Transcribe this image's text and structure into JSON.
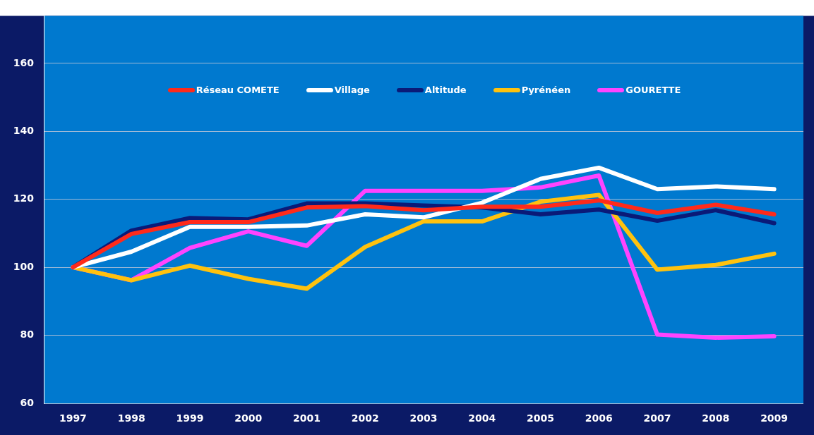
{
  "chart_data": {
    "type": "line",
    "categories": [
      "1997",
      "1998",
      "1999",
      "2000",
      "2001",
      "2002",
      "2003",
      "2004",
      "2005",
      "2006",
      "2007",
      "2008",
      "2009"
    ],
    "series": [
      {
        "name": "Réseau COMETE",
        "color": "#ff2a1a",
        "values": [
          100,
          109.8,
          113.3,
          113.3,
          117.6,
          118,
          116.8,
          117.8,
          117.8,
          119.7,
          116,
          118.4,
          115.6
        ]
      },
      {
        "name": "Village",
        "color": "#ffffff",
        "values": [
          100,
          104.6,
          111.9,
          111.9,
          112.3,
          115.6,
          114.7,
          119,
          126,
          129.3,
          123,
          123.8,
          123
        ]
      },
      {
        "name": "Altitude",
        "color": "#0a1a78",
        "values": [
          100,
          110.8,
          114.5,
          114.1,
          118.8,
          118.8,
          118.2,
          117.6,
          115.6,
          117,
          113.7,
          116.8,
          113
        ]
      },
      {
        "name": "Pyrénéen",
        "color": "#ffc20e",
        "values": [
          100,
          96.2,
          100.5,
          96.6,
          93.7,
          106,
          113.5,
          113.5,
          119.3,
          121.3,
          99.3,
          100.7,
          104
        ]
      },
      {
        "name": "GOURETTE",
        "color": "#ff44ff",
        "values": [
          100,
          96.2,
          105.7,
          110.6,
          106.3,
          122.5,
          122.5,
          122.5,
          123.5,
          127,
          80.2,
          79.3,
          79.7
        ]
      }
    ],
    "ylim": [
      60,
      174
    ],
    "yticks": [
      60,
      80,
      100,
      120,
      140,
      160
    ],
    "grid": "y",
    "legend": "top",
    "marker": "none",
    "line_style": "solid"
  }
}
